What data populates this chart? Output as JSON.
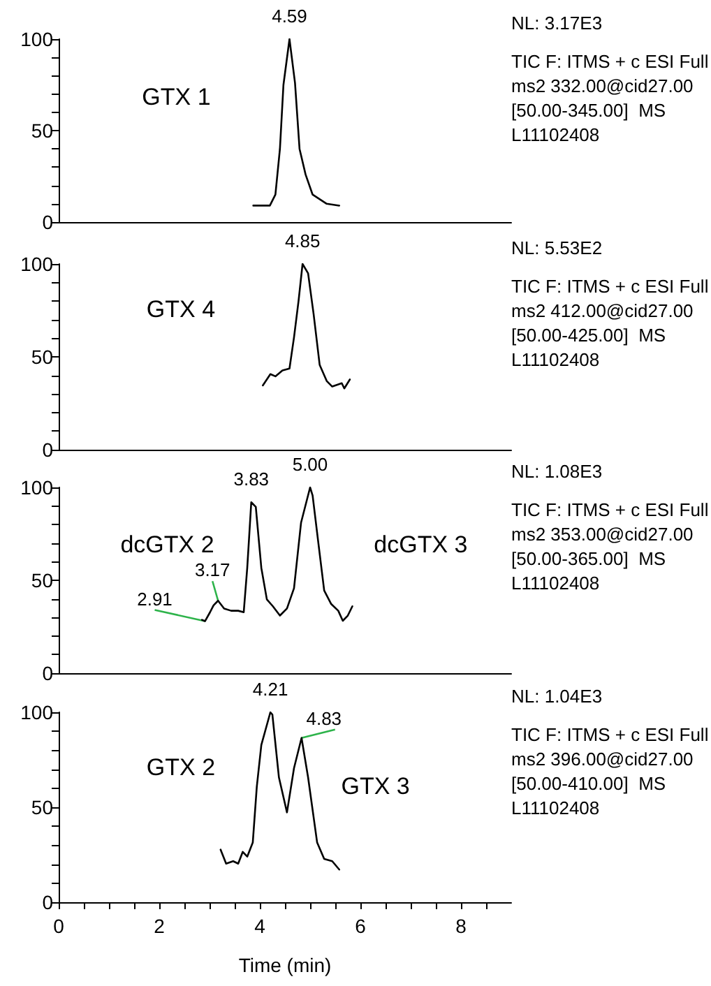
{
  "chart_data": [
    {
      "type": "line",
      "title": "NL: 3.17E3",
      "subtitle": "TIC F: ITMS + c ESI Full\nms2 332.00@cid27.00\n[50.00-345.00]  MS\nL11102408",
      "series": [
        {
          "color": "#000000",
          "x": [
            3.87,
            4.2,
            4.31,
            4.4,
            4.47,
            4.59,
            4.7,
            4.79,
            4.91,
            5.05,
            5.33,
            5.58
          ],
          "values": [
            9,
            9,
            15,
            40,
            75,
            100,
            76,
            40,
            26,
            15,
            10,
            9
          ]
        }
      ],
      "annotations": [
        "GTX 1",
        {
          "text": "4.59",
          "x": 4.59,
          "y": 100
        }
      ],
      "xlim": [
        0,
        9
      ],
      "ylim": [
        0,
        100
      ],
      "yticks": [
        0,
        {
          "value": 10,
          "label": null
        },
        {
          "value": 20,
          "label": null
        },
        {
          "value": 30,
          "label": null
        },
        {
          "value": 40,
          "label": null
        },
        50,
        {
          "value": 60,
          "label": null
        },
        {
          "value": 70,
          "label": null
        },
        {
          "value": 80,
          "label": null
        },
        {
          "value": 90,
          "label": null
        },
        100
      ],
      "tick_labels": "y",
      "grid": false,
      "marker": "none",
      "line_style": "solid"
    },
    {
      "type": "line",
      "title": "NL: 5.53E2",
      "subtitle": "TIC F: ITMS + c ESI Full\nms2 412.00@cid27.00\n[50.00-425.00]  MS\nL11102408",
      "series": [
        {
          "color": "#000000",
          "x": [
            4.06,
            4.21,
            4.31,
            4.45,
            4.59,
            4.68,
            4.77,
            4.85,
            4.96,
            5.07,
            5.19,
            5.33,
            5.44,
            5.63,
            5.68,
            5.79
          ],
          "values": [
            34.6,
            40.7,
            39.5,
            42.7,
            43.7,
            60.5,
            80,
            100,
            95,
            73,
            45.7,
            37,
            34,
            35.8,
            33,
            37.8
          ]
        }
      ],
      "annotations": [
        "GTX 4",
        {
          "text": "4.85",
          "x": 4.85,
          "y": 100
        }
      ],
      "xlim": [
        0,
        9
      ],
      "ylim": [
        0,
        100
      ],
      "yticks": [
        0,
        {
          "value": 10,
          "label": null
        },
        {
          "value": 20,
          "label": null
        },
        {
          "value": 30,
          "label": null
        },
        {
          "value": 40,
          "label": null
        },
        50,
        {
          "value": 60,
          "label": null
        },
        {
          "value": 70,
          "label": null
        },
        {
          "value": 80,
          "label": null
        },
        {
          "value": 90,
          "label": null
        },
        100
      ],
      "tick_labels": "y",
      "grid": false,
      "marker": "none",
      "line_style": "solid"
    },
    {
      "type": "line",
      "title": "NL: 1.08E3",
      "subtitle": "TIC F: ITMS + c ESI Full\nms2 353.00@cid27.00\n[50.00-365.00]  MS\nL11102408",
      "series": [
        {
          "color": "#000000",
          "x": [
            2.85,
            2.91,
            3.01,
            3.08,
            3.17,
            3.29,
            3.43,
            3.57,
            3.68,
            3.75,
            3.83,
            3.92,
            4.03,
            4.14,
            4.26,
            4.4,
            4.54,
            4.68,
            4.82,
            5.0,
            5.05,
            5.16,
            5.28,
            5.42,
            5.56,
            5.65,
            5.75,
            5.84
          ],
          "values": [
            28.7,
            28,
            32.8,
            36.5,
            39,
            34.8,
            33.6,
            33.6,
            32.8,
            56.7,
            92,
            89.5,
            56.7,
            39.7,
            36,
            31,
            34.8,
            45.7,
            81,
            100,
            95.6,
            71,
            44.5,
            37.2,
            33.6,
            28.2,
            31,
            36
          ]
        }
      ],
      "annotations": [
        "dcGTX 2",
        "dcGTX 3",
        {
          "text": "2.91",
          "x": 2.91,
          "y": 28
        },
        {
          "text": "3.17",
          "x": 3.17,
          "y": 39
        },
        {
          "text": "3.83",
          "x": 3.83,
          "y": 92
        },
        {
          "text": "5.00",
          "x": 5.0,
          "y": 100
        }
      ],
      "xlim": [
        0,
        9
      ],
      "ylim": [
        0,
        100
      ],
      "yticks": [
        0,
        {
          "value": 10,
          "label": null
        },
        {
          "value": 20,
          "label": null
        },
        {
          "value": 30,
          "label": null
        },
        {
          "value": 40,
          "label": null
        },
        50,
        {
          "value": 60,
          "label": null
        },
        {
          "value": 70,
          "label": null
        },
        {
          "value": 80,
          "label": null
        },
        {
          "value": 90,
          "label": null
        },
        100
      ],
      "tick_labels": "y",
      "grid": false,
      "marker": "none",
      "line_style": "solid"
    },
    {
      "type": "line",
      "title": "NL: 1.04E3",
      "subtitle": "TIC F: ITMS + c ESI Full\nms2 396.00@cid27.00\n[50.00-410.00]  MS\nL11102408",
      "xlabel": "Time (min)",
      "series": [
        {
          "color": "#000000",
          "x": [
            3.22,
            3.33,
            3.47,
            3.57,
            3.66,
            3.75,
            3.86,
            3.94,
            4.03,
            4.21,
            4.25,
            4.38,
            4.54,
            4.68,
            4.83,
            4.96,
            5.14,
            5.28,
            5.44,
            5.58
          ],
          "values": [
            27.7,
            20.3,
            21.6,
            20.3,
            26.5,
            24,
            31.4,
            60.8,
            82.8,
            100,
            98.8,
            65.7,
            47.3,
            70.6,
            86.5,
            65.7,
            31.4,
            22.8,
            21.6,
            17.2
          ]
        }
      ],
      "annotations": [
        "GTX 2",
        "GTX 3",
        {
          "text": "4.21",
          "x": 4.21,
          "y": 100
        },
        {
          "text": "4.83",
          "x": 4.83,
          "y": 86.5
        }
      ],
      "xlim": [
        0,
        9
      ],
      "ylim": [
        0,
        100
      ],
      "xticks": [
        0,
        {
          "value": 0.5,
          "label": null
        },
        {
          "value": 1,
          "label": null
        },
        {
          "value": 1.5,
          "label": null
        },
        2,
        {
          "value": 2.5,
          "label": null
        },
        {
          "value": 3,
          "label": null
        },
        {
          "value": 3.5,
          "label": null
        },
        4,
        {
          "value": 4.5,
          "label": null
        },
        {
          "value": 5,
          "label": null
        },
        {
          "value": 5.5,
          "label": null
        },
        6,
        {
          "value": 6.5,
          "label": null
        },
        {
          "value": 7,
          "label": null
        },
        {
          "value": 7.5,
          "label": null
        },
        8,
        {
          "value": 8.5,
          "label": null
        }
      ],
      "yticks": [
        0,
        {
          "value": 10,
          "label": null
        },
        {
          "value": 20,
          "label": null
        },
        {
          "value": 30,
          "label": null
        },
        {
          "value": 40,
          "label": null
        },
        50,
        {
          "value": 60,
          "label": null
        },
        {
          "value": 70,
          "label": null
        },
        {
          "value": 80,
          "label": null
        },
        {
          "value": 90,
          "label": null
        },
        100
      ],
      "grid": false,
      "marker": "none",
      "line_style": "solid"
    }
  ]
}
